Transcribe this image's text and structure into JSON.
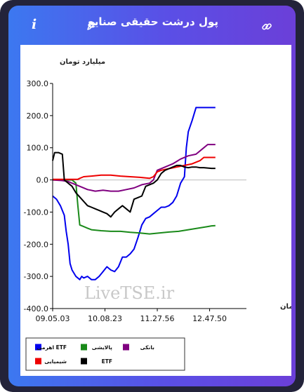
{
  "header": {
    "title": "پول درشت حقیقی صنایع",
    "info_label": "i",
    "edit_icon": "pencil-icon",
    "link_icon": "link-icon"
  },
  "colors": {
    "gradient_start": "#3c78f0",
    "gradient_end": "#6b3fd8",
    "etf_leveraged": "#0000ee",
    "refinery": "#1a8a1a",
    "bank": "#800080",
    "chemical": "#ee0000",
    "etf": "#000000"
  },
  "watermark": "LiveTSE.ir",
  "chart_data": {
    "type": "line",
    "ylabel": "میلیارد تومان",
    "xlabel": "زمان",
    "ylim": [
      -400,
      300
    ],
    "yticks": [
      -400,
      -300,
      -200,
      -100,
      0,
      100,
      200,
      300
    ],
    "ytick_labels": [
      "-400.0",
      "-300.0",
      "-200.0",
      "-100.0",
      "0.0",
      "100.0",
      "200.0",
      "300.0"
    ],
    "xlim": [
      0,
      100
    ],
    "xticks": [
      0,
      27,
      54,
      81
    ],
    "xtick_labels": [
      "09.05.03",
      "10.08.23",
      "11.27.56",
      "12.47.50"
    ],
    "legend": {
      "position": "bottom",
      "items": [
        {
          "label": "اهرمی ETF",
          "color": "#0000ee"
        },
        {
          "label": "پالایشی",
          "color": "#1a8a1a"
        },
        {
          "label": "بانکی",
          "color": "#800080"
        },
        {
          "label": "شیمیایی",
          "color": "#ee0000"
        },
        {
          "label": "ETF",
          "color": "#000000"
        }
      ]
    },
    "series": [
      {
        "name": "اهرمی ETF",
        "color": "#0000ee",
        "x": [
          0,
          2,
          4,
          6,
          7,
          8,
          9,
          10,
          12,
          14,
          15,
          16,
          18,
          20,
          22,
          24,
          26,
          28,
          30,
          32,
          34,
          36,
          38,
          40,
          42,
          44,
          46,
          48,
          50,
          52,
          54,
          56,
          58,
          60,
          62,
          64,
          66,
          68,
          69,
          70,
          72,
          74,
          76,
          77,
          78,
          79,
          80,
          82,
          84
        ],
        "y": [
          -50,
          -60,
          -80,
          -110,
          -160,
          -200,
          -260,
          -280,
          -300,
          -310,
          -300,
          -305,
          -300,
          -310,
          -310,
          -300,
          -285,
          -270,
          -280,
          -285,
          -270,
          -240,
          -240,
          -230,
          -215,
          -180,
          -140,
          -120,
          -115,
          -105,
          -95,
          -85,
          -85,
          -80,
          -70,
          -50,
          -10,
          10,
          100,
          150,
          185,
          225,
          225,
          225,
          225,
          225,
          225,
          225,
          225
        ]
      },
      {
        "name": "پالایشی",
        "color": "#1a8a1a",
        "x": [
          0,
          5,
          10,
          12,
          13,
          14,
          16,
          18,
          20,
          25,
          30,
          35,
          40,
          45,
          50,
          55,
          60,
          65,
          70,
          75,
          80,
          82,
          84
        ],
        "y": [
          0,
          0,
          0,
          -10,
          -80,
          -140,
          -145,
          -150,
          -155,
          -158,
          -160,
          -160,
          -163,
          -165,
          -168,
          -165,
          -162,
          -160,
          -155,
          -150,
          -145,
          -143,
          -142
        ]
      },
      {
        "name": "بانکی",
        "color": "#800080",
        "x": [
          0,
          5,
          8,
          10,
          14,
          18,
          22,
          26,
          30,
          34,
          38,
          42,
          46,
          50,
          52,
          54,
          58,
          62,
          66,
          70,
          74,
          78,
          80,
          84
        ],
        "y": [
          0,
          -2,
          -5,
          -10,
          -20,
          -30,
          -35,
          -32,
          -35,
          -35,
          -30,
          -25,
          -15,
          -10,
          0,
          30,
          40,
          50,
          65,
          75,
          80,
          100,
          110,
          110
        ]
      },
      {
        "name": "شیمیایی",
        "color": "#ee0000",
        "x": [
          0,
          8,
          13,
          14,
          16,
          20,
          25,
          30,
          35,
          40,
          45,
          50,
          52,
          54,
          56,
          60,
          64,
          68,
          72,
          74,
          76,
          78,
          80,
          84
        ],
        "y": [
          2,
          2,
          2,
          5,
          10,
          12,
          15,
          15,
          12,
          10,
          8,
          5,
          10,
          25,
          30,
          35,
          40,
          45,
          50,
          55,
          60,
          70,
          70,
          70
        ]
      },
      {
        "name": "ETF",
        "color": "#000000",
        "x": [
          0,
          1,
          3,
          5,
          6,
          7,
          10,
          12,
          15,
          18,
          20,
          22,
          24,
          26,
          28,
          30,
          32,
          34,
          36,
          38,
          40,
          42,
          44,
          46,
          48,
          50,
          52,
          54,
          56,
          58,
          60,
          62,
          64,
          66,
          68,
          70,
          72,
          74,
          76,
          78,
          80,
          82,
          84
        ],
        "y": [
          60,
          85,
          85,
          80,
          0,
          -5,
          -20,
          -40,
          -60,
          -80,
          -85,
          -90,
          -95,
          -100,
          -105,
          -115,
          -100,
          -90,
          -80,
          -90,
          -100,
          -60,
          -55,
          -50,
          -20,
          -15,
          -10,
          0,
          20,
          30,
          35,
          40,
          45,
          45,
          40,
          38,
          40,
          40,
          38,
          38,
          37,
          36,
          36
        ]
      }
    ]
  }
}
